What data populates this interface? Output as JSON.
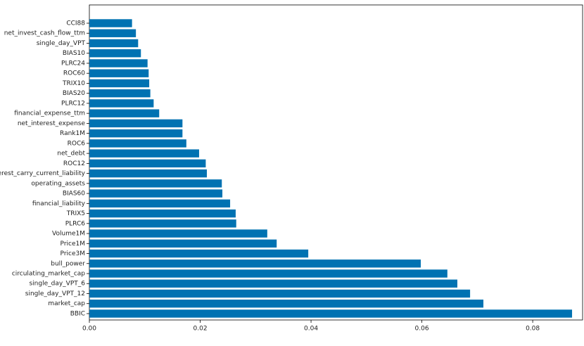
{
  "chart_data": {
    "type": "barh",
    "categories": [
      "CCI88",
      "net_invest_cash_flow_ttm",
      "single_day_VPT",
      "BIAS10",
      "PLRC24",
      "ROC60",
      "TRIX10",
      "BIAS20",
      "PLRC12",
      "financial_expense_ttm",
      "net_interest_expense",
      "Rank1M",
      "ROC6",
      "net_debt",
      "ROC12",
      "interest_carry_current_liability",
      "operating_assets",
      "BIAS60",
      "financial_liability",
      "TRIX5",
      "PLRC6",
      "Volume1M",
      "Price1M",
      "Price3M",
      "bull_power",
      "circulating_market_cap",
      "single_day_VPT_6",
      "single_day_VPT_12",
      "market_cap",
      "BBIC"
    ],
    "values": [
      0.0077,
      0.0084,
      0.0088,
      0.0093,
      0.0105,
      0.0107,
      0.0108,
      0.011,
      0.0116,
      0.0126,
      0.0168,
      0.0168,
      0.0175,
      0.0198,
      0.021,
      0.0212,
      0.0239,
      0.024,
      0.0254,
      0.0264,
      0.0265,
      0.0321,
      0.0338,
      0.0395,
      0.0598,
      0.0646,
      0.0664,
      0.0687,
      0.0711,
      0.0871
    ],
    "color": "#0072b2",
    "xlim": [
      0,
      0.089
    ],
    "xticks": [
      {
        "value": 0,
        "label": "0.00"
      },
      {
        "value": 0.02,
        "label": "0.02"
      },
      {
        "value": 0.04,
        "label": "0.04"
      },
      {
        "value": 0.06,
        "label": "0.06"
      },
      {
        "value": 0.08,
        "label": "0.08"
      }
    ]
  }
}
